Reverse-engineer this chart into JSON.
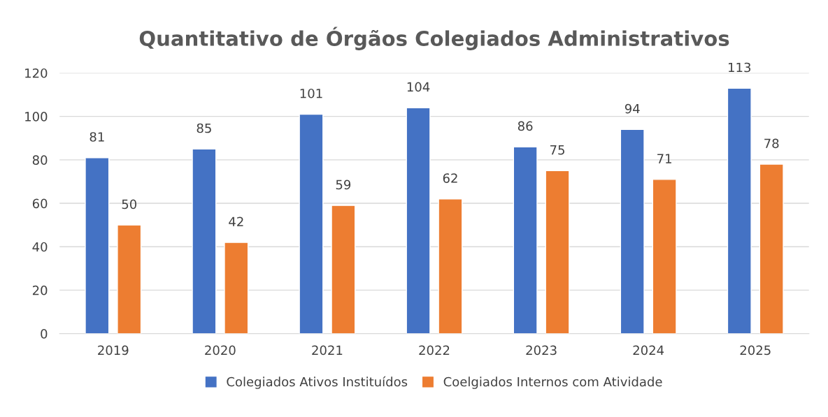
{
  "chart_data": {
    "type": "bar",
    "title": "Quantitativo de Órgãos Colegiados Administrativos",
    "categories": [
      "2019",
      "2020",
      "2021",
      "2022",
      "2023",
      "2024",
      "2025"
    ],
    "series": [
      {
        "name": "Colegiados Ativos Instituídos",
        "color": "#4472c4",
        "values": [
          81,
          85,
          101,
          104,
          86,
          94,
          113
        ]
      },
      {
        "name": "Coelgiados Internos com Atividade",
        "color": "#ed7d31",
        "values": [
          50,
          42,
          59,
          62,
          75,
          71,
          78
        ]
      }
    ],
    "ylim": [
      0,
      120
    ],
    "yticks": [
      0,
      20,
      40,
      60,
      80,
      100,
      120
    ],
    "grid": "y",
    "legend": "bottom",
    "data_labels": true
  }
}
